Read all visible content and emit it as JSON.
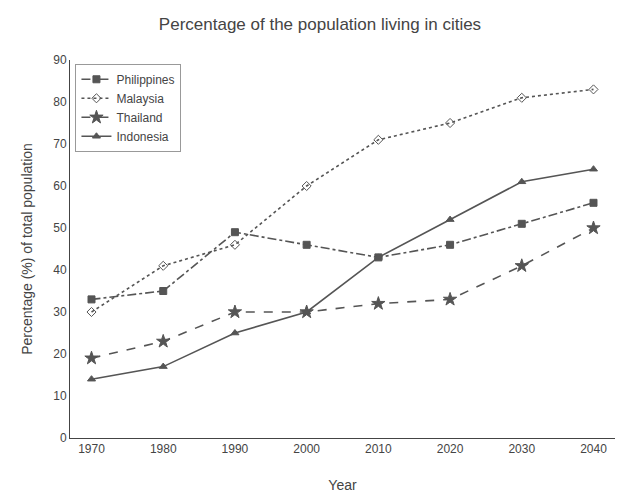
{
  "chart_data": {
    "type": "line",
    "title": "Percentage of the population living in cities",
    "x_label": "Year",
    "y_label": "Percentage (%) of total population",
    "x": [
      1970,
      1980,
      1990,
      2000,
      2010,
      2020,
      2030,
      2040
    ],
    "series": [
      {
        "name": "Philippines",
        "color": "#555555",
        "marker": "square",
        "line_style": "dashdot",
        "values": [
          33,
          35,
          49,
          46,
          43,
          46,
          51,
          56
        ]
      },
      {
        "name": "Malaysia",
        "color": "#555555",
        "marker": "diamond-open",
        "line_style": "dotted",
        "values": [
          30,
          41,
          46,
          60,
          71,
          75,
          81,
          83
        ]
      },
      {
        "name": "Thailand",
        "color": "#555555",
        "marker": "star",
        "line_style": "dashed",
        "values": [
          19,
          23,
          30,
          30,
          32,
          33,
          41,
          50
        ]
      },
      {
        "name": "Indonesia",
        "color": "#555555",
        "marker": "triangle",
        "line_style": "solid",
        "values": [
          14,
          17,
          25,
          30,
          43,
          52,
          61,
          64
        ]
      }
    ],
    "xlim": [
      1967,
      2043
    ],
    "xticks": [
      1970,
      1980,
      1990,
      2000,
      2010,
      2020,
      2030,
      2040
    ],
    "ylim": [
      0,
      90
    ],
    "yticks": [
      0,
      10,
      20,
      30,
      40,
      50,
      60,
      70,
      80,
      90
    ],
    "grid": false,
    "legend": "upper left"
  }
}
